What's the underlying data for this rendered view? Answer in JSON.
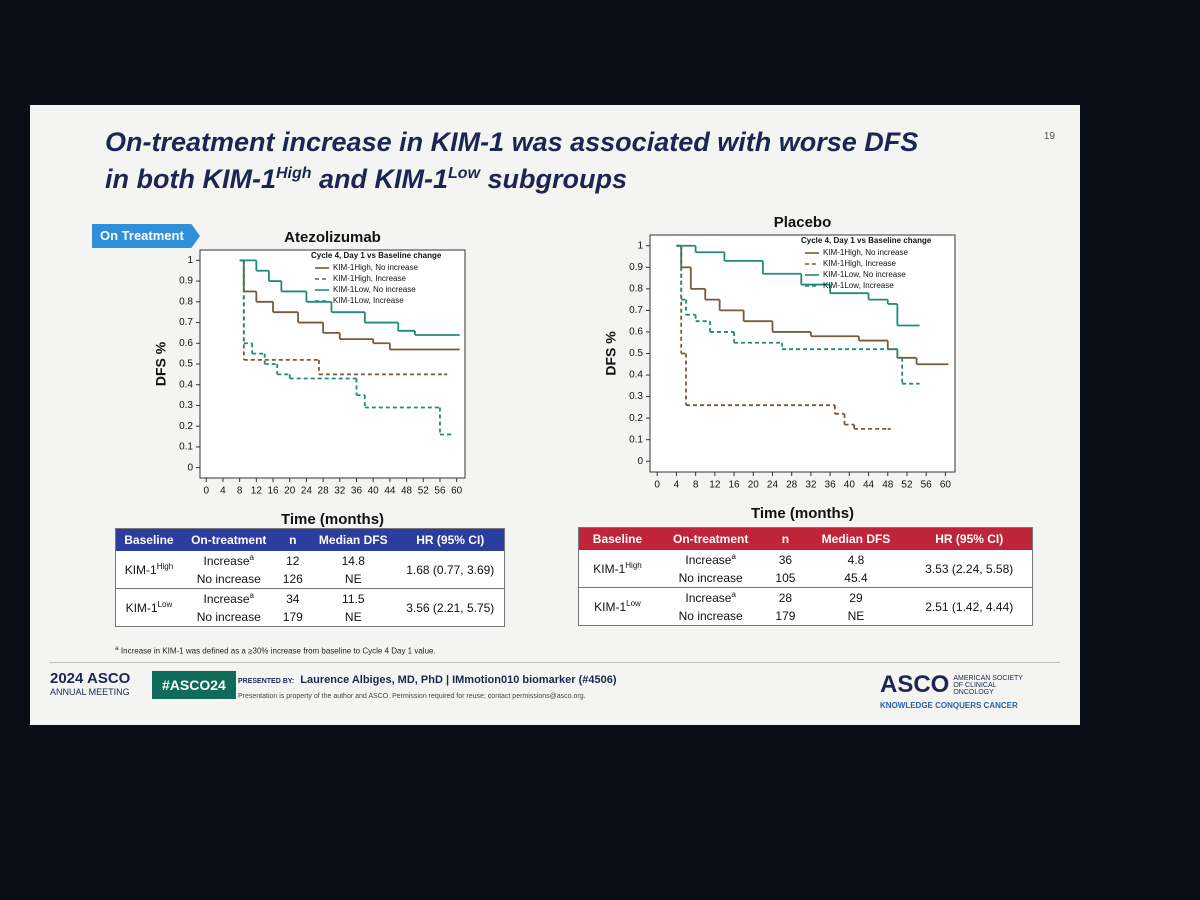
{
  "slide": {
    "title_parts": [
      "On-treatment increase in KIM-1 was associated with worse DFS in both KIM-1",
      "High",
      " and KIM-1",
      "Low",
      " subgroups"
    ],
    "page_number": "19",
    "tag": "On Treatment",
    "footnote": {
      "sup": "a",
      "text": " Increase in KIM-1 was defined as a ≥30% increase from baseline to Cycle 4 Day 1 value."
    },
    "footer": {
      "meeting_year": "2024 ASCO",
      "meeting_name": "ANNUAL MEETING",
      "hashtag": "#ASCO24",
      "presented_by": "PRESENTED BY:",
      "presenter": "Laurence Albiges, MD, PhD  |  IMmotion010 biomarker (#4506)",
      "notice": "Presentation is property of the author and ASCO. Permission required for reuse; contact permissions@asco.org.",
      "logo": "ASCO",
      "society": "AMERICAN SOCIETY OF CLINICAL ONCOLOGY",
      "slogan": "KNOWLEDGE CONQUERS CANCER"
    }
  },
  "chart_data": [
    {
      "type": "line",
      "title": "Atezolizumab",
      "x_label": "Time (months)",
      "y_label": "DFS %",
      "legend_title": "Cycle 4, Day 1 vs Baseline change",
      "xlim": [
        -1.5,
        62
      ],
      "xticks": [
        0,
        4,
        8,
        12,
        16,
        20,
        24,
        28,
        32,
        36,
        40,
        44,
        48,
        52,
        56,
        60
      ],
      "ylim": [
        -0.05,
        1.05
      ],
      "yticks": [
        0,
        0.1,
        0.2,
        0.3,
        0.4,
        0.5,
        0.6,
        0.7,
        0.8,
        0.9,
        1
      ],
      "series": [
        {
          "name": "KIM-1High, No increase",
          "color": "#7a5a3a",
          "dashed": false,
          "x": [
            8,
            9,
            12,
            16,
            22,
            28,
            32,
            40,
            44,
            60
          ],
          "values": [
            1,
            0.85,
            0.8,
            0.75,
            0.7,
            0.65,
            0.62,
            0.6,
            0.57,
            0.57
          ]
        },
        {
          "name": "KIM-1High, Increase",
          "color": "#7a5a3a",
          "dashed": true,
          "x": [
            8,
            9,
            27,
            57
          ],
          "values": [
            1,
            0.52,
            0.45,
            0.45
          ]
        },
        {
          "name": "KIM-1Low, No increase",
          "color": "#1f8a7a",
          "dashed": false,
          "x": [
            8,
            12,
            15,
            18,
            24,
            30,
            38,
            46,
            50,
            60
          ],
          "values": [
            1,
            0.95,
            0.9,
            0.85,
            0.8,
            0.75,
            0.7,
            0.66,
            0.64,
            0.64
          ]
        },
        {
          "name": "KIM-1Low, Increase",
          "color": "#1f8a7a",
          "dashed": true,
          "x": [
            8,
            9,
            11,
            14,
            17,
            20,
            36,
            38,
            56,
            58
          ],
          "values": [
            1,
            0.6,
            0.55,
            0.5,
            0.45,
            0.43,
            0.35,
            0.29,
            0.16,
            0.16
          ]
        }
      ]
    },
    {
      "type": "line",
      "title": "Placebo",
      "x_label": "Time (months)",
      "y_label": "DFS %",
      "legend_title": "Cycle 4, Day 1 vs Baseline change",
      "xlim": [
        -1.5,
        62
      ],
      "xticks": [
        0,
        4,
        8,
        12,
        16,
        20,
        24,
        28,
        32,
        36,
        40,
        44,
        48,
        52,
        56,
        60
      ],
      "ylim": [
        -0.05,
        1.05
      ],
      "yticks": [
        0,
        0.1,
        0.2,
        0.3,
        0.4,
        0.5,
        0.6,
        0.7,
        0.8,
        0.9,
        1
      ],
      "series": [
        {
          "name": "KIM-1High, No increase",
          "color": "#7a5a3a",
          "dashed": false,
          "x": [
            4,
            5,
            7,
            10,
            13,
            18,
            24,
            32,
            42,
            48,
            50,
            54,
            60
          ],
          "values": [
            1,
            0.9,
            0.8,
            0.75,
            0.7,
            0.65,
            0.6,
            0.58,
            0.56,
            0.52,
            0.48,
            0.45,
            0.45
          ]
        },
        {
          "name": "KIM-1High, Increase",
          "color": "#7a5a3a",
          "dashed": true,
          "x": [
            4,
            5,
            6,
            37,
            39,
            41,
            48
          ],
          "values": [
            1,
            0.5,
            0.26,
            0.22,
            0.17,
            0.15,
            0.15
          ]
        },
        {
          "name": "KIM-1Low, No increase",
          "color": "#1f8a7a",
          "dashed": false,
          "x": [
            4,
            8,
            14,
            22,
            30,
            36,
            44,
            48,
            50,
            54
          ],
          "values": [
            1,
            0.97,
            0.93,
            0.87,
            0.82,
            0.78,
            0.75,
            0.73,
            0.63,
            0.63
          ]
        },
        {
          "name": "KIM-1Low, Increase",
          "color": "#1f8a7a",
          "dashed": true,
          "x": [
            4,
            5,
            6,
            8,
            11,
            16,
            26,
            50,
            51,
            54
          ],
          "values": [
            1,
            0.75,
            0.68,
            0.65,
            0.6,
            0.55,
            0.52,
            0.48,
            0.36,
            0.36
          ]
        }
      ]
    }
  ],
  "tables": [
    {
      "header_color": "#2b3d9e",
      "headers": [
        "Baseline",
        "On-treatment",
        "n",
        "Median DFS",
        "HR (95% CI)"
      ],
      "groups": [
        {
          "baseline": "KIM-1",
          "baseline_sup": "High",
          "hr": "1.68 (0.77, 3.69)",
          "rows": [
            {
              "status": "Increase",
              "status_sup": "a",
              "n": 12,
              "median": 14.8
            },
            {
              "status": "No increase",
              "n": 126,
              "median": "NE"
            }
          ]
        },
        {
          "baseline": "KIM-1",
          "baseline_sup": "Low",
          "hr": "3.56 (2.21, 5.75)",
          "rows": [
            {
              "status": "Increase",
              "status_sup": "a",
              "n": 34,
              "median": 11.5
            },
            {
              "status": "No increase",
              "n": 179,
              "median": "NE"
            }
          ]
        }
      ]
    },
    {
      "header_color": "#c0243a",
      "headers": [
        "Baseline",
        "On-treatment",
        "n",
        "Median DFS",
        "HR (95% CI)"
      ],
      "groups": [
        {
          "baseline": "KIM-1",
          "baseline_sup": "High",
          "hr": "3.53 (2.24, 5.58)",
          "rows": [
            {
              "status": "Increase",
              "status_sup": "a",
              "n": 36,
              "median": 4.8
            },
            {
              "status": "No increase",
              "n": 105,
              "median": 45.4
            }
          ]
        },
        {
          "baseline": "KIM-1",
          "baseline_sup": "Low",
          "hr": "2.51 (1.42, 4.44)",
          "rows": [
            {
              "status": "Increase",
              "status_sup": "a",
              "n": 28,
              "median": 29.0
            },
            {
              "status": "No increase",
              "n": 179,
              "median": "NE"
            }
          ]
        }
      ]
    }
  ]
}
